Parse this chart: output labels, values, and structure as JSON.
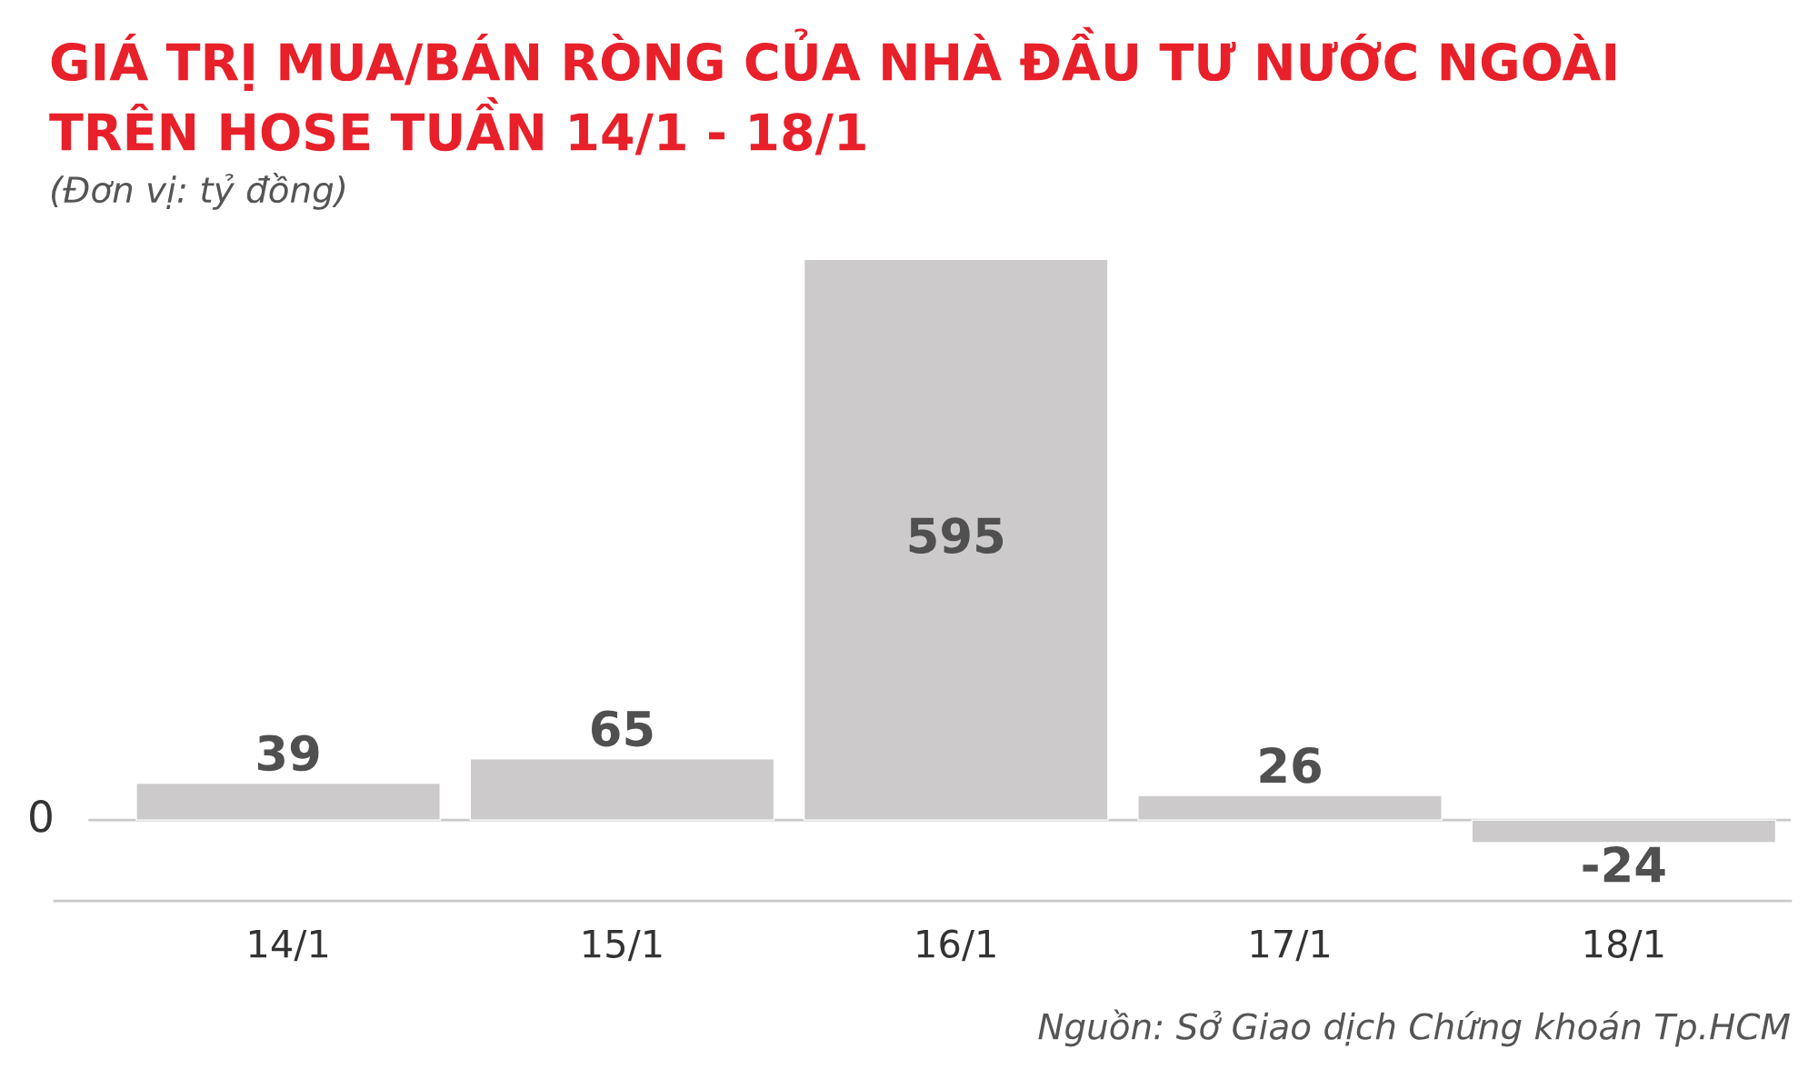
{
  "chart_data": {
    "type": "bar",
    "title": "GIÁ TRỊ MUA/BÁN RÒNG CỦA NHÀ ĐẦU TƯ NƯỚC NGOÀI\nTRÊN HOSE TUẦN 14/1 - 18/1",
    "subtitle": "(Đơn vị: tỷ đồng)",
    "categories": [
      "14/1",
      "15/1",
      "16/1",
      "17/1",
      "18/1"
    ],
    "values": [
      39,
      65,
      595,
      26,
      -24
    ],
    "color": "#cccaca",
    "data_labels": true,
    "annotations": [
      "0",
      "Nguồn: Sở Giao dịch Chứng khoán Tp.HCM"
    ]
  }
}
